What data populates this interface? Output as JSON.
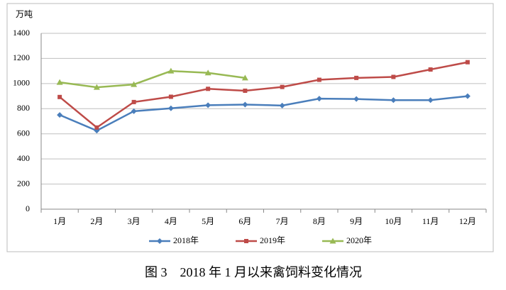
{
  "chart_data": {
    "type": "line",
    "ylabel": "万吨",
    "caption": "图 3　2018 年 1 月以来禽饲料变化情况",
    "categories": [
      "1月",
      "2月",
      "3月",
      "4月",
      "5月",
      "6月",
      "7月",
      "8月",
      "9月",
      "10月",
      "11月",
      "12月"
    ],
    "series": [
      {
        "name": "2018年",
        "color": "#4a7ebb",
        "marker": "diamond",
        "values": [
          750,
          625,
          780,
          803,
          828,
          833,
          825,
          880,
          877,
          868,
          868,
          900
        ]
      },
      {
        "name": "2019年",
        "color": "#be4b48",
        "marker": "square",
        "values": [
          893,
          650,
          853,
          895,
          958,
          943,
          973,
          1030,
          1045,
          1053,
          1112,
          1170
        ]
      },
      {
        "name": "2020年",
        "color": "#98b954",
        "marker": "triangle",
        "values": [
          1010,
          970,
          993,
          1100,
          1085,
          1045,
          null,
          null,
          null,
          null,
          null,
          null
        ]
      }
    ],
    "ylim": [
      0,
      1400
    ],
    "yticks": [
      0,
      200,
      400,
      600,
      800,
      1000,
      1200,
      1400
    ],
    "grid": true,
    "legend": "bottom"
  }
}
